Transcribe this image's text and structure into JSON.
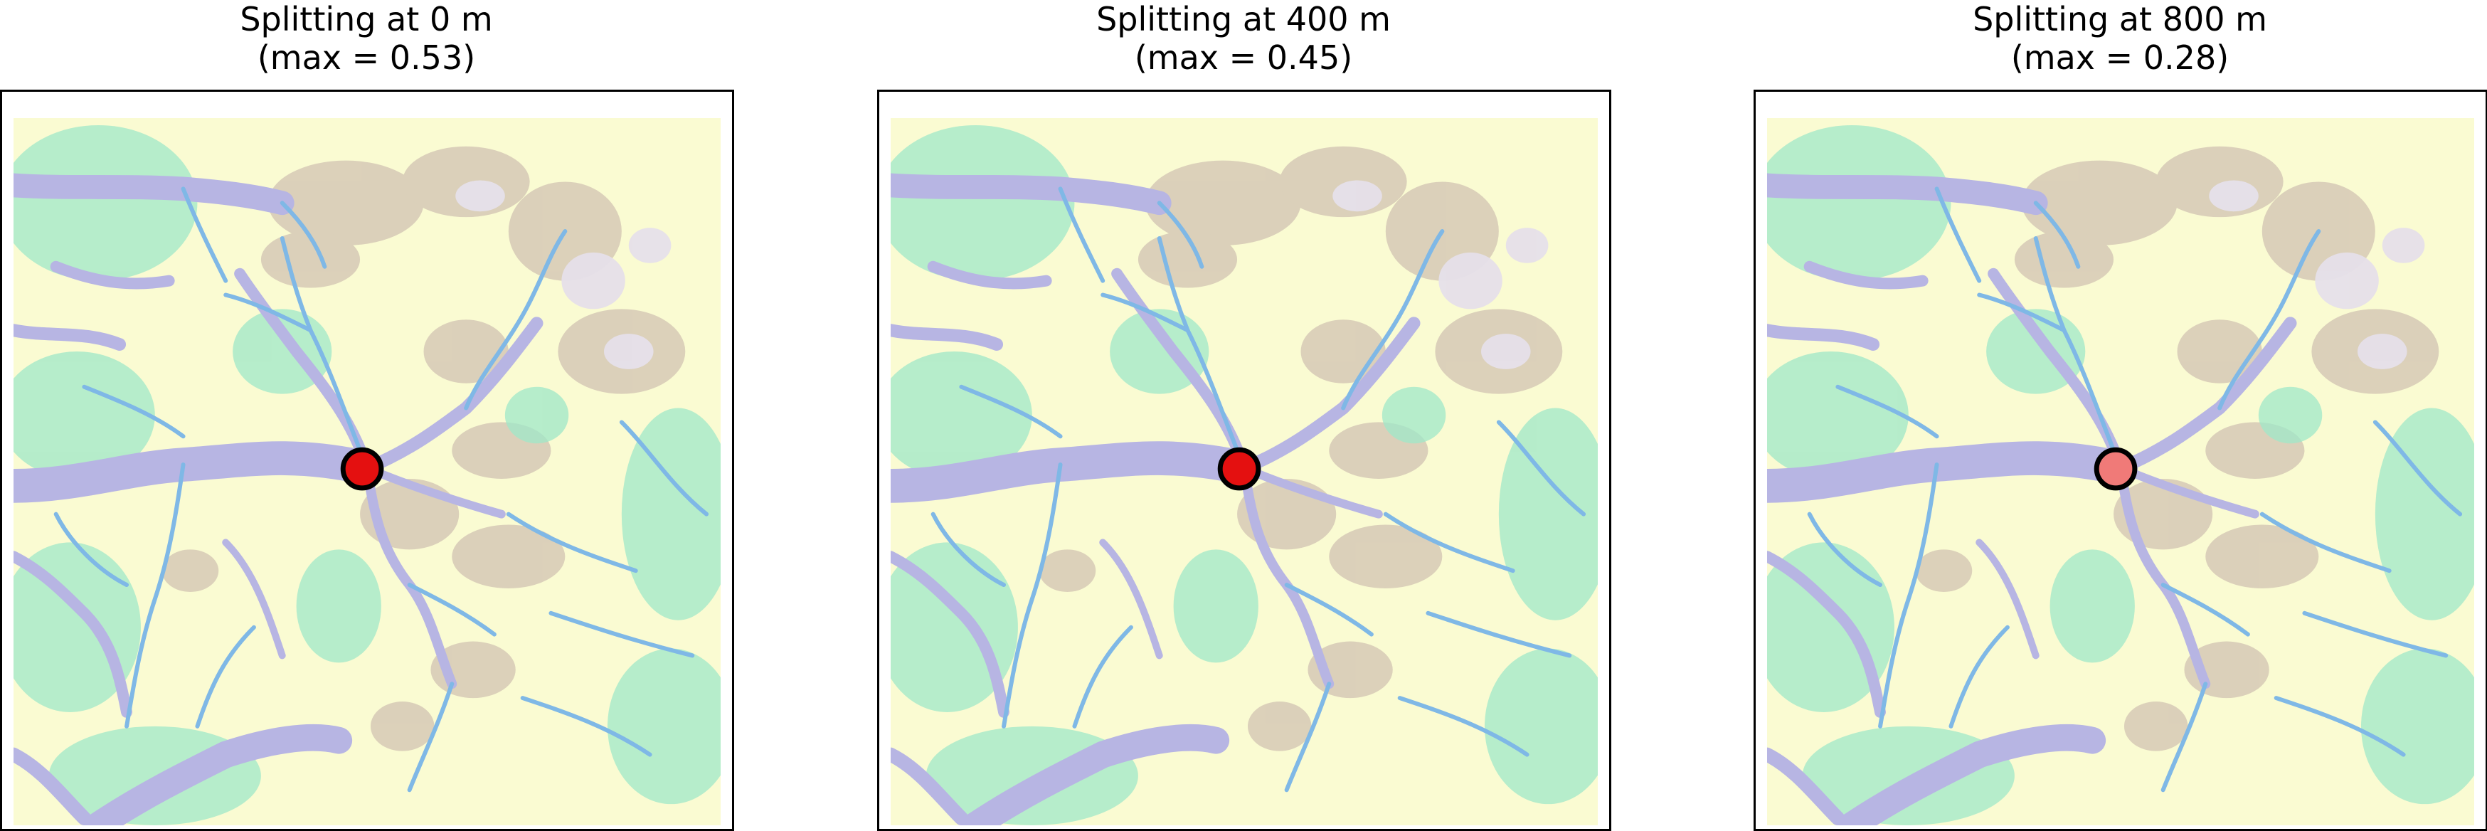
{
  "panels": [
    {
      "title": "Splitting at 0 m",
      "subtitle": "(max = 0.53)",
      "split_height_m": 0,
      "max_value": 0.53,
      "marker_color": "#e41010"
    },
    {
      "title": "Splitting at 400 m",
      "subtitle": "(max = 0.45)",
      "split_height_m": 400,
      "max_value": 0.45,
      "marker_color": "#e41010"
    },
    {
      "title": "Splitting at 800 m",
      "subtitle": "(max = 0.28)",
      "split_height_m": 800,
      "max_value": 0.28,
      "marker_color": "#f07a78"
    }
  ],
  "colors": {
    "valley": "#b7b5e3",
    "river": "#7fb8e6",
    "lowland": "#9fe8c8",
    "plain": "#fafbd2",
    "upland": "#d6c9b6",
    "peak": "#e6e0ea",
    "marker_outline": "#000000"
  }
}
